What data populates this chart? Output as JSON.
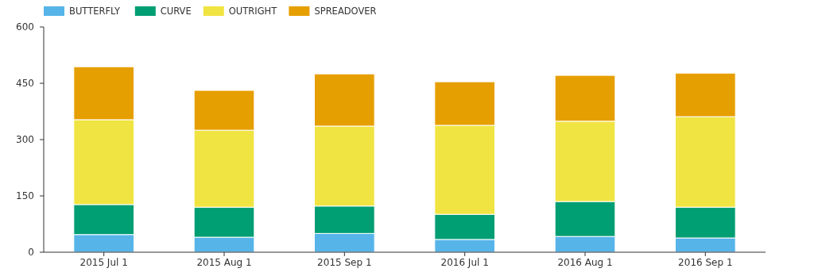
{
  "chart_data": {
    "type": "bar",
    "stacked": true,
    "categories": [
      "2015 Jul 1",
      "2015 Aug 1",
      "2015 Sep 1",
      "2016 Jul 1",
      "2016 Aug 1",
      "2016 Sep 1"
    ],
    "series": [
      {
        "name": "BUTTERFLY",
        "color": "#56b4e9",
        "values": [
          47,
          40,
          50,
          34,
          42,
          38
        ]
      },
      {
        "name": "CURVE",
        "color": "#009e73",
        "values": [
          80,
          80,
          73,
          67,
          93,
          82
        ]
      },
      {
        "name": "OUTRIGHT",
        "color": "#f0e442",
        "values": [
          226,
          205,
          213,
          237,
          214,
          241
        ]
      },
      {
        "name": "SPREADOVER",
        "color": "#e69f00",
        "values": [
          141,
          106,
          139,
          116,
          122,
          116
        ]
      }
    ],
    "ylim": [
      0,
      600
    ],
    "yticks": [
      0,
      150,
      300,
      450,
      600
    ],
    "legend": "top left"
  }
}
